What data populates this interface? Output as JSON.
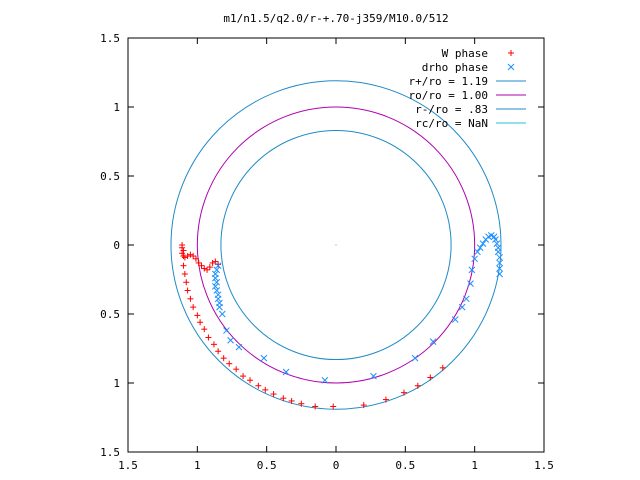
{
  "chart_data": {
    "type": "scatter",
    "title": "m1/n1.5/q2.0/r-+.70-j359/M10.0/512",
    "xlabel": "",
    "ylabel": "",
    "xlim": [
      -1.5,
      1.5
    ],
    "ylim": [
      1.5,
      -1.5
    ],
    "x_tick_values": [
      -1.5,
      -1.0,
      -0.5,
      0,
      0.5,
      1.0,
      1.5
    ],
    "x_tick_labels": [
      "1.5",
      "1",
      "0.5",
      "0",
      "0.5",
      "1",
      "1.5"
    ],
    "y_tick_values": [
      -1.5,
      -1.0,
      -0.5,
      0,
      0.5,
      1.0,
      1.5
    ],
    "y_tick_labels": [
      "1.5",
      "1",
      "0.5",
      "0",
      "0.5",
      "1",
      "1.5"
    ],
    "grid": false,
    "legend_position": "top-right",
    "series": [
      {
        "name": "W phase",
        "kind": "points",
        "marker": "plus",
        "color": "#ff0000",
        "points": [
          [
            -1.11,
            0.0
          ],
          [
            -1.11,
            0.02
          ],
          [
            -1.1,
            0.04
          ],
          [
            -1.11,
            0.06
          ],
          [
            -1.1,
            0.08
          ],
          [
            -1.09,
            0.09
          ],
          [
            -1.07,
            0.08
          ],
          [
            -1.05,
            0.07
          ],
          [
            -1.03,
            0.08
          ],
          [
            -1.01,
            0.1
          ],
          [
            -0.99,
            0.13
          ],
          [
            -0.97,
            0.15
          ],
          [
            -0.95,
            0.17
          ],
          [
            -0.93,
            0.18
          ],
          [
            -0.91,
            0.16
          ],
          [
            -0.89,
            0.13
          ],
          [
            -0.87,
            0.12
          ],
          [
            -0.85,
            0.14
          ],
          [
            -1.1,
            0.15
          ],
          [
            -1.09,
            0.21
          ],
          [
            -1.08,
            0.27
          ],
          [
            -1.07,
            0.33
          ],
          [
            -1.05,
            0.39
          ],
          [
            -1.03,
            0.45
          ],
          [
            -1.0,
            0.51
          ],
          [
            -0.98,
            0.56
          ],
          [
            -0.95,
            0.61
          ],
          [
            -0.92,
            0.67
          ],
          [
            -0.88,
            0.72
          ],
          [
            -0.85,
            0.77
          ],
          [
            -0.81,
            0.82
          ],
          [
            -0.77,
            0.86
          ],
          [
            -0.72,
            0.9
          ],
          [
            -0.67,
            0.95
          ],
          [
            -0.62,
            0.98
          ],
          [
            -0.56,
            1.02
          ],
          [
            -0.51,
            1.05
          ],
          [
            -0.45,
            1.08
          ],
          [
            -0.38,
            1.11
          ],
          [
            -0.32,
            1.13
          ],
          [
            -0.25,
            1.15
          ],
          [
            -0.15,
            1.17
          ],
          [
            -0.02,
            1.17
          ],
          [
            0.2,
            1.16
          ],
          [
            0.36,
            1.12
          ],
          [
            0.49,
            1.07
          ],
          [
            0.59,
            1.02
          ],
          [
            0.68,
            0.96
          ],
          [
            0.77,
            0.89
          ]
        ]
      },
      {
        "name": "drho phase",
        "kind": "points",
        "marker": "x",
        "color": "#1e90ff",
        "points": [
          [
            -0.85,
            0.15
          ],
          [
            -0.86,
            0.18
          ],
          [
            -0.87,
            0.21
          ],
          [
            -0.87,
            0.24
          ],
          [
            -0.86,
            0.27
          ],
          [
            -0.87,
            0.3
          ],
          [
            -0.86,
            0.33
          ],
          [
            -0.85,
            0.36
          ],
          [
            -0.85,
            0.39
          ],
          [
            -0.84,
            0.42
          ],
          [
            -0.84,
            0.45
          ],
          [
            -0.82,
            0.5
          ],
          [
            -0.79,
            0.62
          ],
          [
            -0.76,
            0.69
          ],
          [
            -0.7,
            0.74
          ],
          [
            -0.52,
            0.82
          ],
          [
            -0.36,
            0.92
          ],
          [
            -0.08,
            0.98
          ],
          [
            0.27,
            0.95
          ],
          [
            0.57,
            0.82
          ],
          [
            0.7,
            0.7
          ],
          [
            0.86,
            0.54
          ],
          [
            0.91,
            0.45
          ],
          [
            0.94,
            0.39
          ],
          [
            0.97,
            0.28
          ],
          [
            0.98,
            0.18
          ],
          [
            1.0,
            0.1
          ],
          [
            1.02,
            0.05
          ],
          [
            1.04,
            0.02
          ],
          [
            1.06,
            -0.01
          ],
          [
            1.08,
            -0.04
          ],
          [
            1.1,
            -0.06
          ],
          [
            1.12,
            -0.07
          ],
          [
            1.14,
            -0.06
          ],
          [
            1.15,
            -0.04
          ],
          [
            1.16,
            -0.01
          ],
          [
            1.17,
            0.02
          ],
          [
            1.17,
            0.05
          ],
          [
            1.18,
            0.09
          ],
          [
            1.18,
            0.13
          ],
          [
            1.18,
            0.17
          ],
          [
            1.18,
            0.21
          ]
        ]
      },
      {
        "name": "r+/ro = 1.19",
        "kind": "circle",
        "radius": 1.19,
        "color": "#1f8bc6"
      },
      {
        "name": "ro/ro = 1.00",
        "kind": "circle",
        "radius": 1.0,
        "color": "#b000b0"
      },
      {
        "name": "r-/ro = .83",
        "kind": "circle",
        "radius": 0.83,
        "color": "#1f8bc6"
      },
      {
        "name": "rc/ro = NaN",
        "kind": "circle",
        "radius": null,
        "color": "#22c6d6"
      }
    ]
  }
}
